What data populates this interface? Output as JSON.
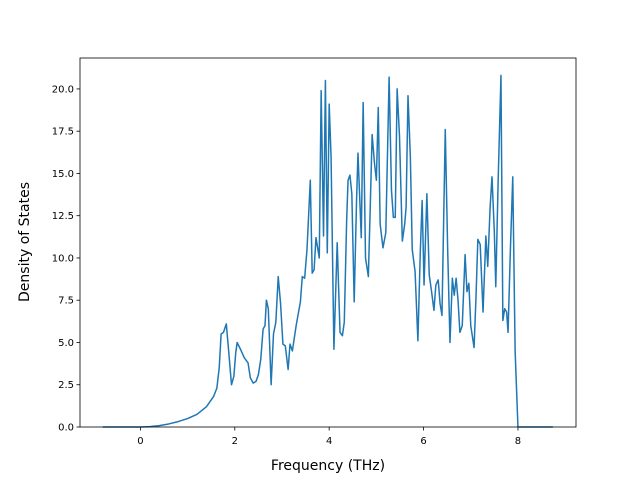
{
  "chart_data": {
    "type": "line",
    "x_label": "Frequency (THz)",
    "y_label": "Density of States",
    "xlim": [
      -1.28,
      9.23
    ],
    "ylim": [
      0,
      21.83
    ],
    "xticks": [
      0,
      2,
      4,
      6,
      8
    ],
    "yticks": [
      {
        "value": 0,
        "label": "0.0"
      },
      {
        "value": 2.5,
        "label": "2.5"
      },
      {
        "value": 5,
        "label": "5.0"
      },
      {
        "value": 7.5,
        "label": "7.5"
      },
      {
        "value": 10,
        "label": "10.0"
      },
      {
        "value": 12.5,
        "label": "12.5"
      },
      {
        "value": 15,
        "label": "15.0"
      },
      {
        "value": 17.5,
        "label": "17.5"
      },
      {
        "value": 20,
        "label": "20.0"
      }
    ],
    "series": [
      {
        "color": "#1f77b4",
        "x": [
          -0.8,
          0,
          0.2,
          0.4,
          0.6,
          0.8,
          1.0,
          1.2,
          1.4,
          1.55,
          1.62,
          1.67,
          1.71,
          1.76,
          1.82,
          1.87,
          1.93,
          1.98,
          2.02,
          2.05,
          2.12,
          2.2,
          2.28,
          2.33,
          2.39,
          2.45,
          2.5,
          2.55,
          2.6,
          2.64,
          2.67,
          2.71,
          2.77,
          2.82,
          2.87,
          2.92,
          2.97,
          3.02,
          3.07,
          3.13,
          3.17,
          3.22,
          3.3,
          3.39,
          3.43,
          3.48,
          3.53,
          3.6,
          3.64,
          3.68,
          3.72,
          3.79,
          3.83,
          3.88,
          3.92,
          3.96,
          4.0,
          4.04,
          4.1,
          4.17,
          4.23,
          4.28,
          4.32,
          4.37,
          4.4,
          4.44,
          4.48,
          4.53,
          4.58,
          4.61,
          4.68,
          4.72,
          4.77,
          4.83,
          4.87,
          4.91,
          4.96,
          5.0,
          5.04,
          5.08,
          5.14,
          5.2,
          5.27,
          5.32,
          5.36,
          5.4,
          5.44,
          5.49,
          5.55,
          5.6,
          5.63,
          5.67,
          5.72,
          5.76,
          5.82,
          5.88,
          5.93,
          5.97,
          6.01,
          6.07,
          6.12,
          6.17,
          6.22,
          6.26,
          6.31,
          6.35,
          6.39,
          6.46,
          6.51,
          6.56,
          6.61,
          6.65,
          6.69,
          6.73,
          6.77,
          6.82,
          6.88,
          6.92,
          6.96,
          7.0,
          7.07,
          7.11,
          7.15,
          7.2,
          7.26,
          7.32,
          7.36,
          7.41,
          7.45,
          7.5,
          7.53,
          7.58,
          7.64,
          7.68,
          7.72,
          7.76,
          7.79,
          7.84,
          7.89,
          7.94,
          8.0,
          8.3,
          8.74
        ],
        "values": [
          0,
          0,
          0.02,
          0.08,
          0.18,
          0.32,
          0.5,
          0.75,
          1.2,
          1.8,
          2.3,
          3.5,
          5.5,
          5.6,
          6.1,
          4.5,
          2.5,
          3.0,
          4.4,
          5.0,
          4.6,
          4.1,
          3.8,
          2.9,
          2.6,
          2.7,
          3.1,
          4.0,
          5.8,
          6.0,
          7.5,
          7.0,
          2.5,
          5.5,
          6.2,
          8.9,
          7.3,
          4.9,
          4.8,
          3.4,
          4.9,
          4.5,
          6.0,
          7.4,
          8.9,
          8.8,
          10.5,
          14.6,
          9.1,
          9.3,
          11.2,
          10.0,
          19.9,
          11.3,
          20.5,
          10.3,
          19.1,
          16.0,
          4.6,
          10.9,
          5.6,
          5.4,
          6.2,
          12.2,
          14.6,
          14.9,
          13.8,
          7.4,
          13.4,
          16.2,
          11.2,
          19.2,
          10.0,
          8.9,
          13.0,
          17.3,
          15.6,
          14.6,
          18.9,
          12.0,
          10.6,
          11.5,
          20.7,
          14.0,
          12.4,
          12.4,
          20.0,
          17.2,
          11.0,
          12.0,
          13.0,
          19.6,
          16.0,
          10.5,
          9.2,
          5.1,
          10.3,
          13.4,
          8.4,
          13.8,
          9.0,
          8.0,
          6.9,
          8.4,
          8.7,
          7.3,
          6.6,
          17.6,
          10.6,
          5.0,
          8.8,
          7.8,
          8.8,
          7.5,
          5.6,
          6.0,
          10.2,
          8.0,
          8.5,
          6.0,
          4.7,
          7.6,
          11.1,
          10.8,
          6.8,
          11.3,
          9.5,
          13.0,
          14.8,
          11.5,
          8.3,
          14.5,
          20.8,
          6.3,
          7.0,
          6.8,
          5.6,
          10.5,
          14.8,
          4.5,
          0,
          0,
          0
        ]
      }
    ]
  }
}
